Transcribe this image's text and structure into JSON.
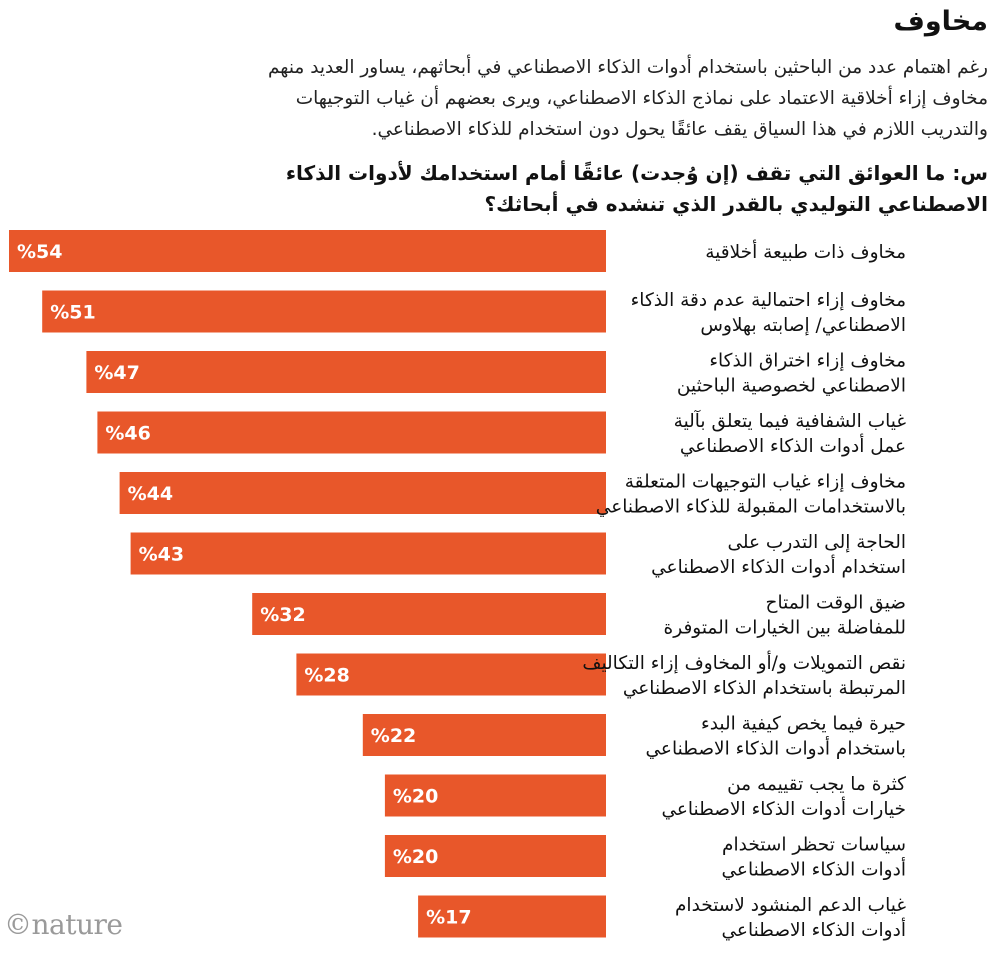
{
  "header": {
    "title": "مخاوف",
    "subtitle": "رغم اهتمام عدد من الباحثين باستخدام أدوات الذكاء الاصطناعي في أبحاثهم، يساور العديد منهم مخاوف إزاء أخلاقية الاعتماد على نماذج الذكاء الاصطناعي، ويرى بعضهم أن غياب التوجيهات والتدريب اللازم في هذا السياق يقف عائقًا يحول دون استخدام للذكاء الاصطناعي.",
    "question": "س: ما العوائق التي تقف (إن وُجدت) عائقًا أمام استخدامك لأدوات الذكاء الاصطناعي التوليدي بالقدر الذي تنشده في أبحاثك؟"
  },
  "logo": "©nature",
  "chart_data": {
    "type": "bar",
    "orientation": "horizontal",
    "value_format": "%{v}",
    "bar_color": "#e8572a",
    "categories": [
      [
        "مخاوف ذات طبيعة أخلاقية"
      ],
      [
        "مخاوف إزاء احتمالية عدم دقة الذكاء",
        "الاصطناعي/ إصابته بهلاوس"
      ],
      [
        "مخاوف إزاء اختراق الذكاء",
        "الاصطناعي لخصوصية الباحثين"
      ],
      [
        "غياب الشفافية فيما يتعلق بآلية",
        "عمل أدوات الذكاء الاصطناعي"
      ],
      [
        "مخاوف إزاء غياب التوجيهات المتعلقة",
        "بالاستخدامات المقبولة للذكاء الاصطناعي"
      ],
      [
        "الحاجة إلى التدرب على",
        "استخدام أدوات الذكاء الاصطناعي"
      ],
      [
        "ضيق الوقت المتاح",
        "للمفاضلة بين الخيارات المتوفرة"
      ],
      [
        "نقص التمويلات و/أو المخاوف إزاء التكاليف",
        "المرتبطة باستخدام الذكاء الاصطناعي"
      ],
      [
        "حيرة فيما يخص كيفية البدء",
        "باستخدام أدوات الذكاء الاصطناعي"
      ],
      [
        "كثرة ما يجب تقييمه من",
        "خيارات أدوات الذكاء الاصطناعي"
      ],
      [
        "سياسات تحظر استخدام",
        "أدوات الذكاء الاصطناعي"
      ],
      [
        "غياب الدعم المنشود لاستخدام",
        "أدوات الذكاء الاصطناعي"
      ]
    ],
    "values": [
      54,
      51,
      47,
      46,
      44,
      43,
      32,
      28,
      22,
      20,
      20,
      17
    ],
    "value_labels": [
      "%54",
      "%51",
      "%47",
      "%46",
      "%44",
      "%43",
      "%32",
      "%28",
      "%22",
      "%20",
      "%20",
      "%17"
    ],
    "xlim": [
      0,
      54
    ]
  }
}
